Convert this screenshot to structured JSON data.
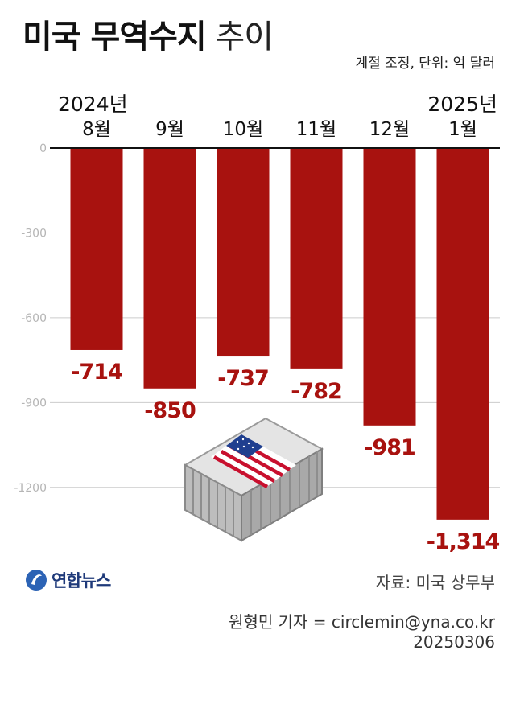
{
  "title": {
    "bold": "미국 무역수지",
    "light": "추이"
  },
  "unit_note": "계절 조정, 단위: 억 달러",
  "year_labels": {
    "start": "2024년",
    "end": "2025년"
  },
  "chart_data": {
    "type": "bar",
    "categories": [
      "8월",
      "9월",
      "10월",
      "11월",
      "12월",
      "1월"
    ],
    "values": [
      -714,
      -850,
      -737,
      -782,
      -981,
      -1314
    ],
    "value_labels": [
      "-714",
      "-850",
      "-737",
      "-782",
      "-981",
      "-1,314"
    ],
    "yticks": [
      0,
      -300,
      -600,
      -900,
      -1200
    ],
    "ytick_labels": [
      "0",
      "-300",
      "-600",
      "-900",
      "-1200"
    ],
    "ylim": [
      -1350,
      0
    ],
    "grid": true,
    "bar_color": "#a8120f"
  },
  "illustration": {
    "icon": "shipping-container-icon",
    "flag": "us-flag-icon"
  },
  "logo": {
    "icon": "yonhap-logo-icon",
    "text": "연합뉴스"
  },
  "source": "자료: 미국 상무부",
  "credit": "원형민 기자 = circlemin@yna.co.kr",
  "date": "20250306",
  "colors": {
    "bar": "#a8120f",
    "value_label": "#a8120f",
    "grid": "#cccccc",
    "axis": "#111111",
    "brand": "#1f3a7a"
  }
}
